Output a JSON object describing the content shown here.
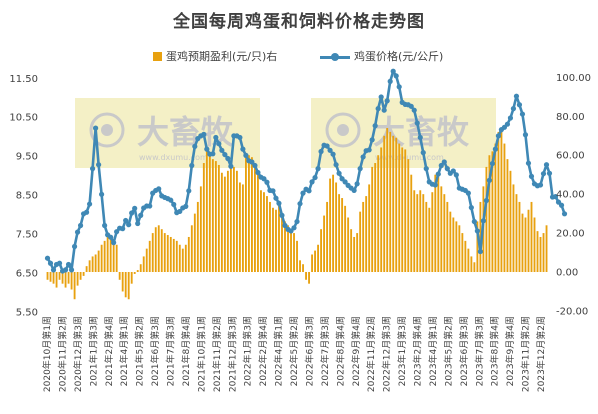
{
  "colors": {
    "bar": "#e8a10f",
    "line": "#3f88b5",
    "watermark_bg": "#f4f0c6",
    "watermark_text": "#c9c9c9",
    "axis_text": "#404040"
  },
  "watermark": {
    "icon": "dxumu-logo-icon",
    "text": "大畜牧",
    "subtext": "www.dxumu.com"
  },
  "chart_data": {
    "type": "bar",
    "title": "全国每周鸡蛋和饲料价格走势图",
    "legend_position": "top",
    "grid": false,
    "series": [
      {
        "name": "蛋鸡预期盈利(元/只)右",
        "type": "bar",
        "axis": "right",
        "values": [
          -4,
          -5,
          -6,
          -8,
          -4,
          -6,
          -8,
          -6,
          -9,
          -14,
          -7,
          -4,
          -2,
          3,
          6,
          8,
          9,
          11,
          14,
          16,
          20,
          19,
          17,
          14,
          -4,
          -10,
          -13,
          -14,
          -6,
          -1,
          1,
          4,
          8,
          12,
          16,
          20,
          23,
          24,
          22,
          20,
          19,
          18,
          17,
          16,
          14,
          12,
          14,
          18,
          24,
          30,
          36,
          44,
          56,
          62,
          60,
          58,
          57,
          55,
          51,
          49,
          52,
          55,
          54,
          52,
          46,
          45,
          59,
          60,
          59,
          56,
          50,
          42,
          41,
          39,
          36,
          33,
          32,
          34,
          30,
          26,
          24,
          22,
          20,
          16,
          6,
          4,
          -4,
          -6,
          9,
          11,
          14,
          22,
          29,
          36,
          48,
          50,
          46,
          40,
          38,
          34,
          28,
          22,
          18,
          20,
          31,
          36,
          39,
          45,
          54,
          56,
          60,
          64,
          70,
          74,
          72,
          70,
          69,
          66,
          64,
          63,
          58,
          50,
          42,
          40,
          42,
          40,
          36,
          33,
          41,
          50,
          49,
          44,
          40,
          36,
          31,
          28,
          26,
          24,
          20,
          16,
          12,
          8,
          5,
          26,
          36,
          44,
          54,
          60,
          62,
          66,
          72,
          72,
          66,
          58,
          52,
          45,
          40,
          36,
          30,
          28,
          32,
          36,
          28,
          21,
          18,
          20,
          24
        ]
      },
      {
        "name": "鸡蛋价格(元/公斤)",
        "type": "line",
        "axis": "left",
        "values": [
          6.88,
          6.75,
          6.58,
          6.72,
          6.75,
          6.55,
          6.58,
          6.72,
          6.58,
          7.18,
          7.55,
          7.72,
          8.02,
          8.06,
          8.27,
          9.18,
          10.22,
          9.28,
          8.52,
          7.72,
          7.48,
          7.42,
          7.28,
          7.56,
          7.65,
          7.64,
          7.85,
          7.74,
          8.04,
          8.16,
          7.77,
          7.98,
          8.17,
          8.22,
          8.22,
          8.55,
          8.62,
          8.66,
          8.48,
          8.44,
          8.41,
          8.37,
          8.26,
          8.05,
          8.08,
          8.17,
          8.21,
          8.61,
          9.26,
          9.75,
          9.95,
          10.02,
          10.06,
          9.68,
          9.55,
          9.56,
          9.98,
          9.82,
          9.65,
          9.54,
          9.44,
          9.24,
          10.02,
          10.02,
          9.98,
          9.68,
          9.52,
          9.38,
          9.35,
          9.26,
          9.08,
          8.96,
          8.92,
          8.83,
          8.62,
          8.61,
          8.42,
          8.29,
          7.98,
          7.72,
          7.62,
          7.58,
          7.66,
          7.82,
          8.28,
          8.55,
          8.65,
          8.61,
          8.84,
          8.95,
          9.18,
          9.62,
          9.78,
          9.76,
          9.65,
          9.55,
          9.28,
          9.06,
          8.92,
          8.84,
          8.75,
          8.68,
          8.62,
          8.79,
          9.18,
          9.48,
          9.64,
          9.66,
          9.92,
          10.28,
          10.72,
          11.02,
          10.68,
          10.92,
          11.42,
          11.68,
          11.56,
          11.28,
          10.88,
          10.83,
          10.82,
          10.78,
          10.68,
          10.35,
          9.98,
          9.59,
          9.18,
          8.84,
          8.78,
          8.76,
          9.04,
          9.26,
          9.35,
          9.18,
          9.06,
          9.12,
          9.02,
          8.68,
          8.65,
          8.62,
          8.55,
          8.18,
          7.82,
          7.58,
          7.05,
          7.84,
          8.36,
          8.88,
          9.31,
          9.68,
          10.02,
          10.18,
          10.24,
          10.32,
          10.48,
          10.72,
          11.04,
          10.82,
          10.58,
          10.05,
          9.32,
          8.98,
          8.79,
          8.74,
          8.76,
          9.05,
          9.28,
          9.06,
          8.45,
          8.46,
          8.32,
          8.24,
          8.02
        ]
      }
    ],
    "y_left": {
      "label": "",
      "ylim": [
        5.5,
        12.5
      ],
      "ticks": [
        5.5,
        6.5,
        7.5,
        8.5,
        9.5,
        10.5,
        11.5
      ],
      "tick_labels": [
        "5.50",
        "6.50",
        "7.50",
        "8.50",
        "9.50",
        "10.50",
        "11.50"
      ]
    },
    "y_right": {
      "label": "",
      "ylim": [
        -20,
        100
      ],
      "ticks": [
        -20,
        0,
        20,
        40,
        60,
        80,
        100
      ],
      "tick_labels": [
        "-20.00",
        "0.00",
        "20.00",
        "40.00",
        "60.00",
        "80.00",
        "100.00"
      ]
    },
    "x_tick_labels": [
      "2020年10月第1周",
      "2020年11月第2周",
      "2020年12月第3周",
      "2021年1月第3周",
      "2021年2月第4周",
      "2021年4月第1周",
      "2021年5月第2周",
      "2021年6月第3周",
      "2021年7月第3周",
      "2021年8月第4周",
      "2021年10月第1周",
      "2021年11月第2周",
      "2021年12月第3周",
      "2022年1月第3周",
      "2022年2月第4周",
      "2022年4月第1周",
      "2022年5月第2周",
      "2022年6月第3周",
      "2022年7月第3周",
      "2022年8月第4周",
      "2022年9月第4周",
      "2022年11月第2周",
      "2022年12月第3周",
      "2023年1月第3周",
      "2023年2月第4周",
      "2023年4月第1周",
      "2023年5月第2周",
      "2023年6月第3周",
      "2023年7月第3周",
      "2023年8月第4周",
      "2023年9月第4周",
      "2023年11月第2周",
      "2023年12月第2周"
    ]
  }
}
